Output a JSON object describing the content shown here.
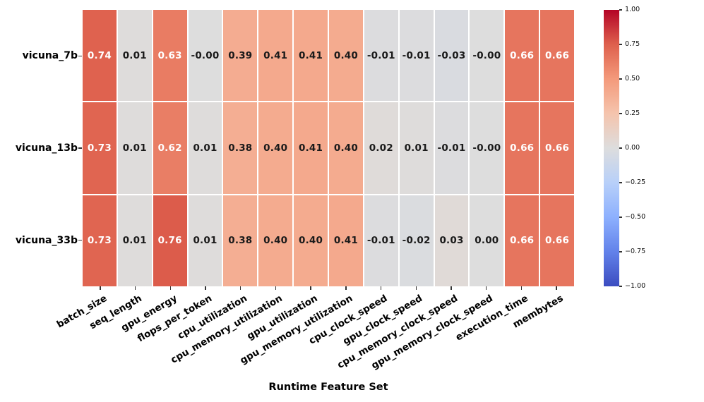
{
  "chart_data": {
    "type": "heatmap",
    "title": "",
    "xlabel": "Runtime Feature Set",
    "ylabel": "",
    "rows": [
      "vicuna_7b",
      "vicuna_13b",
      "vicuna_33b"
    ],
    "columns": [
      "batch_size",
      "seq_length",
      "gpu_energy",
      "flops_per_token",
      "cpu_utilization",
      "cpu_memory_utilization",
      "gpu_utilization",
      "gpu_memory_utilization",
      "cpu_clock_speed",
      "gpu_clock_speed",
      "cpu_memory_clock_speed",
      "gpu_memory_clock_speed",
      "execution_time",
      "membytes"
    ],
    "values": [
      [
        "0.74",
        "0.01",
        "0.63",
        "-0.00",
        "0.39",
        "0.41",
        "0.41",
        "0.40",
        "-0.01",
        "-0.01",
        "-0.03",
        "-0.00",
        "0.66",
        "0.66"
      ],
      [
        "0.73",
        "0.01",
        "0.62",
        "0.01",
        "0.38",
        "0.40",
        "0.41",
        "0.40",
        "0.02",
        "0.01",
        "-0.01",
        "-0.00",
        "0.66",
        "0.66"
      ],
      [
        "0.73",
        "0.01",
        "0.76",
        "0.01",
        "0.38",
        "0.40",
        "0.40",
        "0.41",
        "-0.01",
        "-0.02",
        "0.03",
        "0.00",
        "0.66",
        "0.66"
      ]
    ],
    "vmin": -1,
    "vmax": 1,
    "colormap": "coolwarm",
    "colormap_anchors": [
      "#3B4CC0",
      "#6282EA",
      "#8DB0FE",
      "#B8D0F9",
      "#DDDDDD",
      "#F5C4AD",
      "#F49A7B",
      "#DE604D",
      "#B40426"
    ],
    "colorbar_ticks": [
      "1.00",
      "0.75",
      "0.50",
      "0.25",
      "0.00",
      "−0.25",
      "−0.50",
      "−0.75",
      "−1.00"
    ],
    "xtick_rotation_deg": 30,
    "grid_gap_color": "#ffffff",
    "annotation_dark_color": "#1a1a1a",
    "annotation_light_color": "#ffffff",
    "legend_position": "right-colorbar"
  }
}
